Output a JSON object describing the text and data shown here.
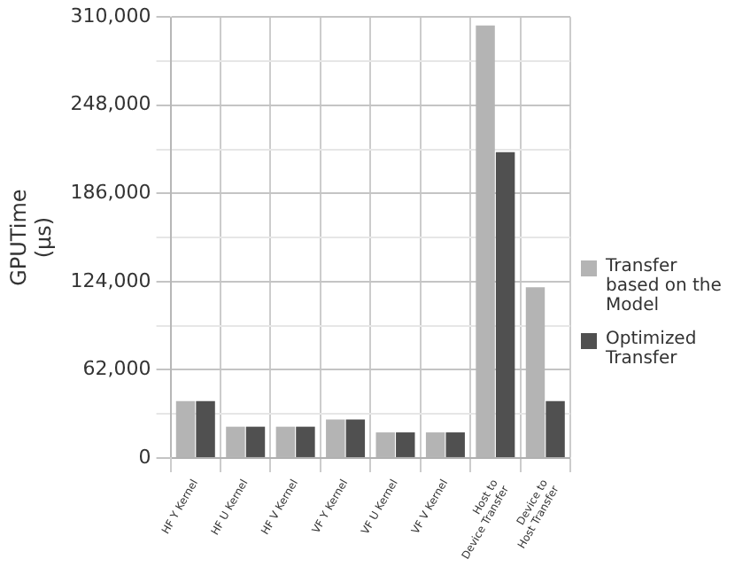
{
  "chart_data": {
    "type": "bar",
    "ylabel": "GPUTime (µs)",
    "categories": [
      "HF Y Kernel",
      "HF U Kernel",
      "HF V Kernel",
      "VF Y Kernel",
      "VF U Kernel",
      "VF V Kernel",
      "Host to Device Transfer",
      "Device to Host Transfer"
    ],
    "series": [
      {
        "name": "Transfer based on the Model",
        "color": "#b4b4b4",
        "values": [
          40000,
          22000,
          22000,
          27000,
          18000,
          18000,
          304000,
          120000
        ]
      },
      {
        "name": "Optimized Transfer",
        "color": "#505050",
        "values": [
          40000,
          22000,
          22000,
          27000,
          18000,
          18000,
          215000,
          40000
        ]
      }
    ],
    "ylim": [
      0,
      310000
    ],
    "yticks": [
      0,
      {
        "value": 31000,
        "label": null
      },
      {
        "value": 62000,
        "label": "62,000"
      },
      {
        "value": 93000,
        "label": null
      },
      {
        "value": 124000,
        "label": "124,000"
      },
      {
        "value": 155000,
        "label": null
      },
      {
        "value": 186000,
        "label": "186,000"
      },
      {
        "value": 217000,
        "label": null
      },
      {
        "value": 248000,
        "label": "248,000"
      },
      {
        "value": 279000,
        "label": null
      },
      {
        "value": 310000,
        "label": "310,000"
      }
    ],
    "grid": true,
    "legend": "right"
  }
}
